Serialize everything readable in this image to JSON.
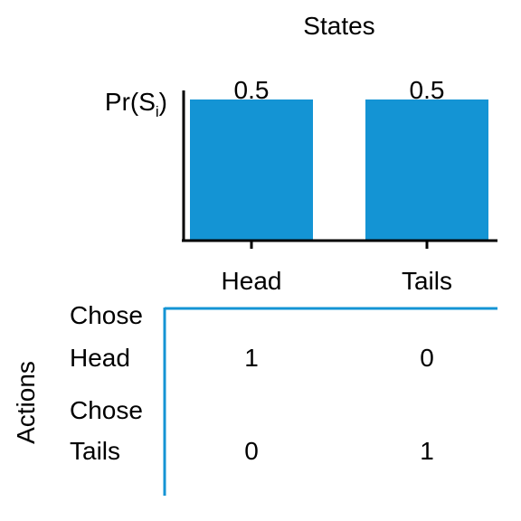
{
  "chart_data": {
    "type": "bar",
    "title": "States",
    "ylabel_main": "Pr(S",
    "ylabel_sub": "i",
    "ylabel_close": ")",
    "categories": [
      "Head",
      "Tails"
    ],
    "values": [
      0.5,
      0.5
    ],
    "value_labels": [
      "0.5",
      "0.5"
    ],
    "ylim": [
      0,
      0.5
    ],
    "bar_color": "#1494d4"
  },
  "payoff_table": {
    "row_axis_label": "Actions",
    "rows": [
      {
        "label_line1": "Chose",
        "label_line2": "Head",
        "values": [
          "1",
          "0"
        ]
      },
      {
        "label_line1": "Chose",
        "label_line2": "Tails",
        "values": [
          "0",
          "1"
        ]
      }
    ],
    "line_color": "#1494d4"
  }
}
